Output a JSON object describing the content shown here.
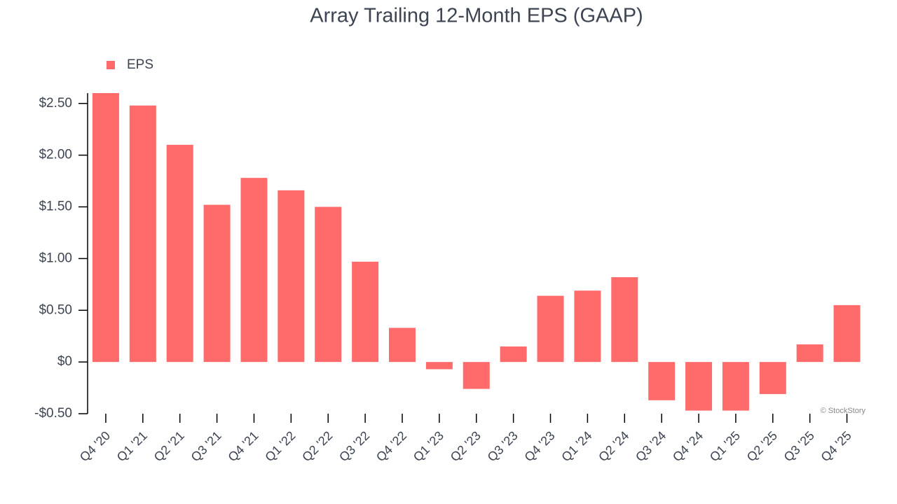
{
  "chart_data": {
    "type": "bar",
    "title": "Array Trailing 12-Month EPS (GAAP)",
    "categories": [
      "Q4 '20",
      "Q1 '21",
      "Q2 '21",
      "Q3 '21",
      "Q4 '21",
      "Q1 '22",
      "Q2 '22",
      "Q3 '22",
      "Q4 '22",
      "Q1 '23",
      "Q2 '23",
      "Q3 '23",
      "Q4 '23",
      "Q1 '24",
      "Q2 '24",
      "Q3 '24",
      "Q4 '24",
      "Q1 '25",
      "Q2 '25",
      "Q3 '25",
      "Q4 '25"
    ],
    "series": [
      {
        "name": "EPS",
        "color": "#ff6b6b",
        "values": [
          2.6,
          2.48,
          2.1,
          1.52,
          1.78,
          1.66,
          1.5,
          0.97,
          0.33,
          -0.07,
          -0.26,
          0.15,
          0.64,
          0.69,
          0.82,
          -0.37,
          -0.47,
          -0.47,
          -0.31,
          0.17,
          0.55
        ]
      }
    ],
    "ylim": [
      -0.5,
      2.6
    ],
    "yticks": [
      {
        "value": -0.5,
        "label": "-$0.50"
      },
      {
        "value": 0,
        "label": "$0"
      },
      {
        "value": 0.5,
        "label": "$0.50"
      },
      {
        "value": 1,
        "label": "$1.00"
      },
      {
        "value": 1.5,
        "label": "$1.50"
      },
      {
        "value": 2,
        "label": "$2.00"
      },
      {
        "value": 2.5,
        "label": "$2.50"
      }
    ],
    "legend": "top-left",
    "grid": false,
    "watermark": "© StockStory"
  }
}
